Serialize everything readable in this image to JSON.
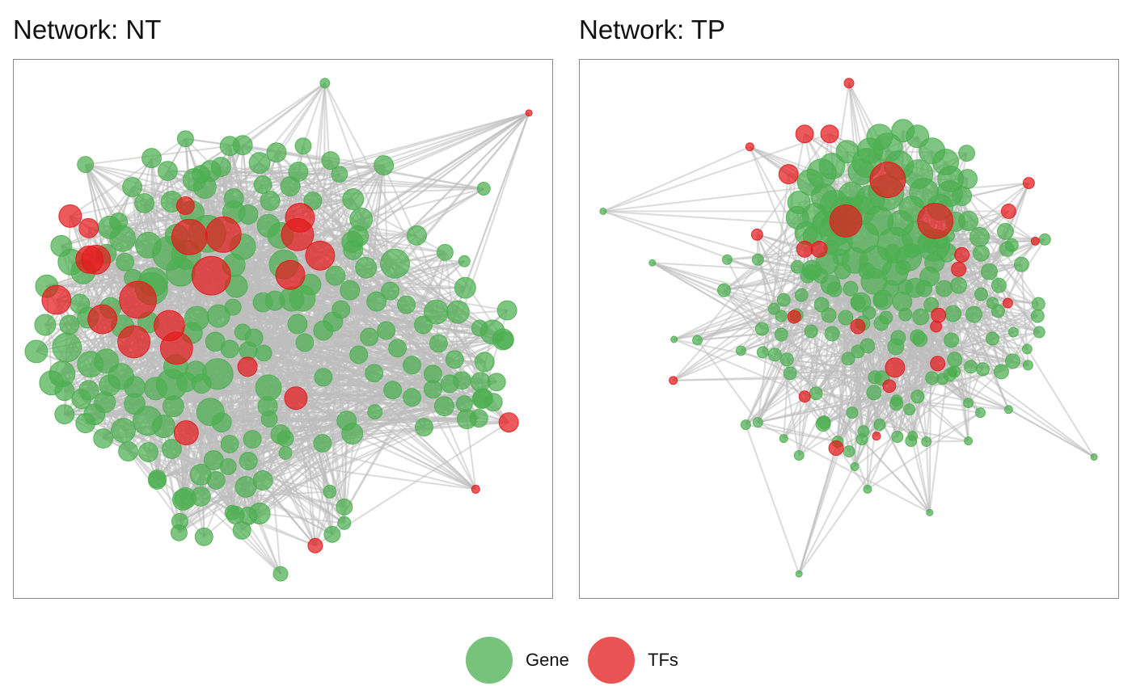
{
  "panels": [
    {
      "id": "nt",
      "title": "Network: NT"
    },
    {
      "id": "tp",
      "title": "Network: TP"
    }
  ],
  "legend": {
    "items": [
      {
        "label": "Gene",
        "color": "#4CAF50"
      },
      {
        "label": "TFs",
        "color": "#E41A1C"
      }
    ]
  },
  "colors": {
    "gene": "#4CAF50",
    "tf": "#E41A1C",
    "edge": "#BDBDBD",
    "border": "#8A8A8A"
  }
}
